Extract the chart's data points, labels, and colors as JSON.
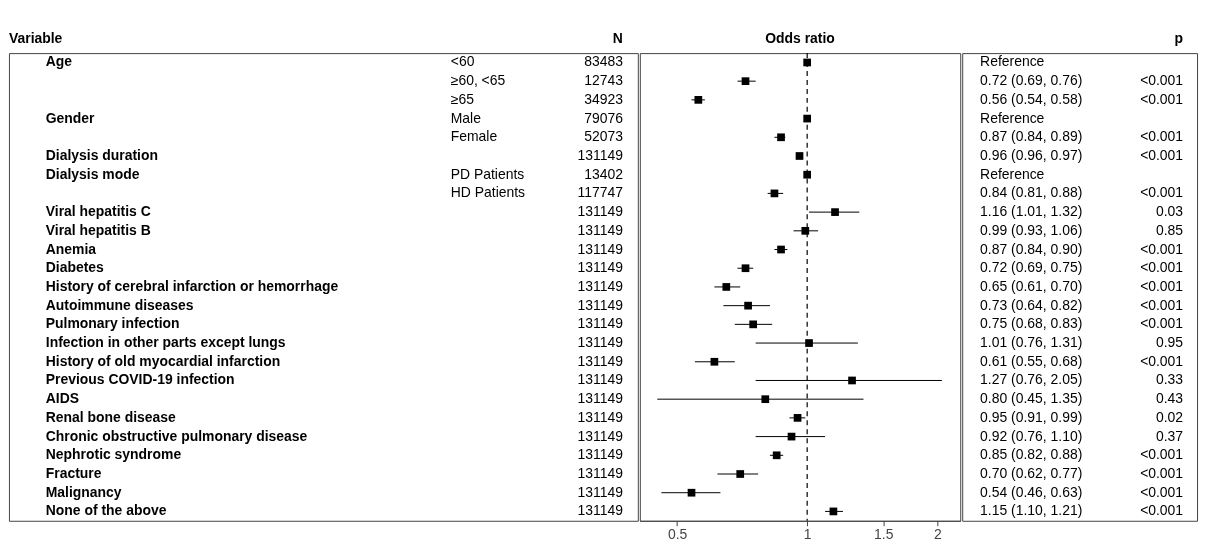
{
  "chart_data": [
    {
      "type": "other",
      "categories": [
        "Variable",
        null,
        "N"
      ],
      "cell_labels": [
        [
          "Age",
          "<60",
          "83483"
        ],
        [
          null,
          "≥60, <65",
          "12743"
        ],
        [
          null,
          "≥65",
          "34923"
        ],
        [
          "Gender",
          "Male",
          "79076"
        ],
        [
          null,
          "Female",
          "52073"
        ],
        [
          "Dialysis duration",
          null,
          "131149"
        ],
        [
          "Dialysis mode",
          "PD Patients",
          "13402"
        ],
        [
          null,
          "HD Patients",
          "117747"
        ],
        [
          "Viral hepatitis C",
          null,
          "131149"
        ],
        [
          "Viral hepatitis B",
          null,
          "131149"
        ],
        [
          "Anemia",
          null,
          "131149"
        ],
        [
          "Diabetes",
          null,
          "131149"
        ],
        [
          "History of cerebral infarction or hemorrhage",
          null,
          "131149"
        ],
        [
          "Autoimmune diseases",
          null,
          "131149"
        ],
        [
          "Pulmonary infection",
          null,
          "131149"
        ],
        [
          "Infection in other parts except lungs",
          null,
          "131149"
        ],
        [
          "History of old myocardial infarction",
          null,
          "131149"
        ],
        [
          "Previous COVID-19 infection",
          null,
          "131149"
        ],
        [
          "AIDS",
          null,
          "131149"
        ],
        [
          "Renal bone disease",
          null,
          "131149"
        ],
        [
          "Chronic obstructive pulmonary disease",
          null,
          "131149"
        ],
        [
          "Nephrotic syndrome",
          null,
          "131149"
        ],
        [
          "Fracture",
          null,
          "131149"
        ],
        [
          "Malignancy",
          null,
          "131149"
        ],
        [
          "None of the above",
          null,
          "131149"
        ]
      ]
    },
    {
      "type": "scatter",
      "title": "Odds ratio",
      "orientation": "horizontal",
      "color": "#000000",
      "marker": "square",
      "grid": false,
      "log": "x",
      "tick_labels": "x",
      "categories": [
        null,
        null,
        null,
        null,
        null,
        null,
        null,
        null,
        null,
        null,
        null,
        null,
        null,
        null,
        null,
        null,
        null,
        null,
        null,
        null,
        null,
        null,
        null,
        null,
        null
      ],
      "values": [
        1,
        0.72,
        0.56,
        1,
        0.87,
        0.96,
        1,
        0.84,
        1.16,
        0.99,
        0.87,
        0.72,
        0.65,
        0.73,
        0.75,
        1.01,
        0.61,
        1.27,
        0.8,
        0.95,
        0.92,
        0.85,
        0.7,
        0.54,
        1.15
      ],
      "errors": [
        null,
        [
          0.69,
          0.76
        ],
        [
          0.54,
          0.58
        ],
        null,
        [
          0.84,
          0.89
        ],
        [
          0.96,
          0.97
        ],
        null,
        [
          0.81,
          0.88
        ],
        [
          1.01,
          1.32
        ],
        [
          0.93,
          1.06
        ],
        [
          0.84,
          0.9
        ],
        [
          0.69,
          0.75
        ],
        [
          0.61,
          0.7
        ],
        [
          0.64,
          0.82
        ],
        [
          0.68,
          0.83
        ],
        [
          0.76,
          1.31
        ],
        [
          0.55,
          0.68
        ],
        [
          0.76,
          2.05
        ],
        [
          0.45,
          1.35
        ],
        [
          0.91,
          0.99
        ],
        [
          0.76,
          1.1
        ],
        [
          0.82,
          0.88
        ],
        [
          0.62,
          0.77
        ],
        [
          0.46,
          0.63
        ],
        [
          1.1,
          1.21
        ]
      ],
      "xlim": [
        0.41,
        2.26
      ],
      "xticks": [
        0.5,
        1,
        1.5,
        2
      ],
      "ref_lines": [
        {
          "axis": "x",
          "value": 1,
          "line_style": "dashed",
          "color": "#000000"
        }
      ]
    },
    {
      "type": "other",
      "categories": [
        null,
        "p"
      ],
      "cell_labels": [
        [
          "Reference",
          null
        ],
        [
          "0.72 (0.69, 0.76)",
          "<0.001"
        ],
        [
          "0.56 (0.54, 0.58)",
          "<0.001"
        ],
        [
          "Reference",
          null
        ],
        [
          "0.87 (0.84, 0.89)",
          "<0.001"
        ],
        [
          "0.96 (0.96, 0.97)",
          "<0.001"
        ],
        [
          "Reference",
          null
        ],
        [
          "0.84 (0.81, 0.88)",
          "<0.001"
        ],
        [
          "1.16 (1.01, 1.32)",
          "0.03"
        ],
        [
          "0.99 (0.93, 1.06)",
          "0.85"
        ],
        [
          "0.87 (0.84, 0.90)",
          "<0.001"
        ],
        [
          "0.72 (0.69, 0.75)",
          "<0.001"
        ],
        [
          "0.65 (0.61, 0.70)",
          "<0.001"
        ],
        [
          "0.73 (0.64, 0.82)",
          "<0.001"
        ],
        [
          "0.75 (0.68, 0.83)",
          "<0.001"
        ],
        [
          "1.01 (0.76, 1.31)",
          "0.95"
        ],
        [
          "0.61 (0.55, 0.68)",
          "<0.001"
        ],
        [
          "1.27 (0.76, 2.05)",
          "0.33"
        ],
        [
          "0.80 (0.45, 1.35)",
          "0.43"
        ],
        [
          "0.95 (0.91, 0.99)",
          "0.02"
        ],
        [
          "0.92 (0.76, 1.10)",
          "0.37"
        ],
        [
          "0.85 (0.82, 0.88)",
          "<0.001"
        ],
        [
          "0.70 (0.62, 0.77)",
          "<0.001"
        ],
        [
          "0.54 (0.46, 0.63)",
          "<0.001"
        ],
        [
          "1.15 (1.10, 1.21)",
          "<0.001"
        ]
      ]
    }
  ]
}
